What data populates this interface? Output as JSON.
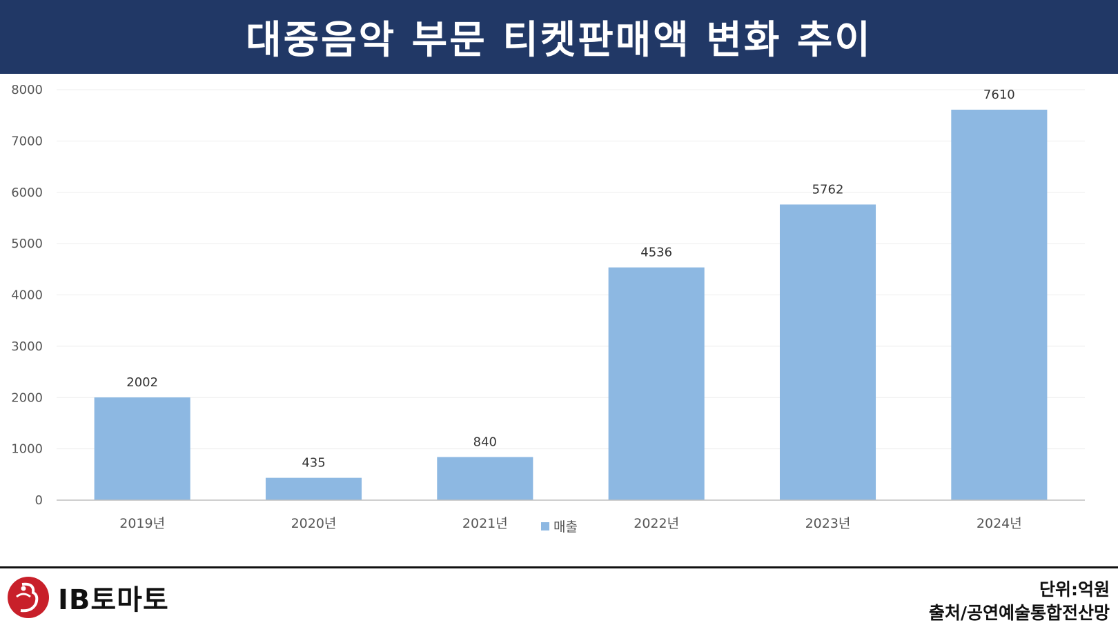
{
  "header": {
    "title": "대중음악 부문 티켓판매액 변화 추이"
  },
  "chart_data": {
    "type": "bar",
    "categories": [
      "2019년",
      "2020년",
      "2021년",
      "2022년",
      "2023년",
      "2024년"
    ],
    "series": [
      {
        "name": "매출",
        "values": [
          2002,
          435,
          840,
          4536,
          5762,
          7610
        ],
        "color": "#8DB8E2"
      }
    ],
    "title": "대중음악 부문 티켓판매액 변화 추이",
    "xlabel": "",
    "ylabel": "",
    "ylim": [
      0,
      8000
    ],
    "yticks": [
      0,
      1000,
      2000,
      3000,
      4000,
      5000,
      6000,
      7000,
      8000
    ],
    "grid": true,
    "legend": "bottom"
  },
  "footer": {
    "logo_text": "IB토마토",
    "unit": "단위:억원",
    "source": "출처/공연예술통합전산망"
  },
  "colors": {
    "header_bg": "#213866",
    "bar": "#8DB8E2",
    "logo_red": "#C8202A"
  }
}
